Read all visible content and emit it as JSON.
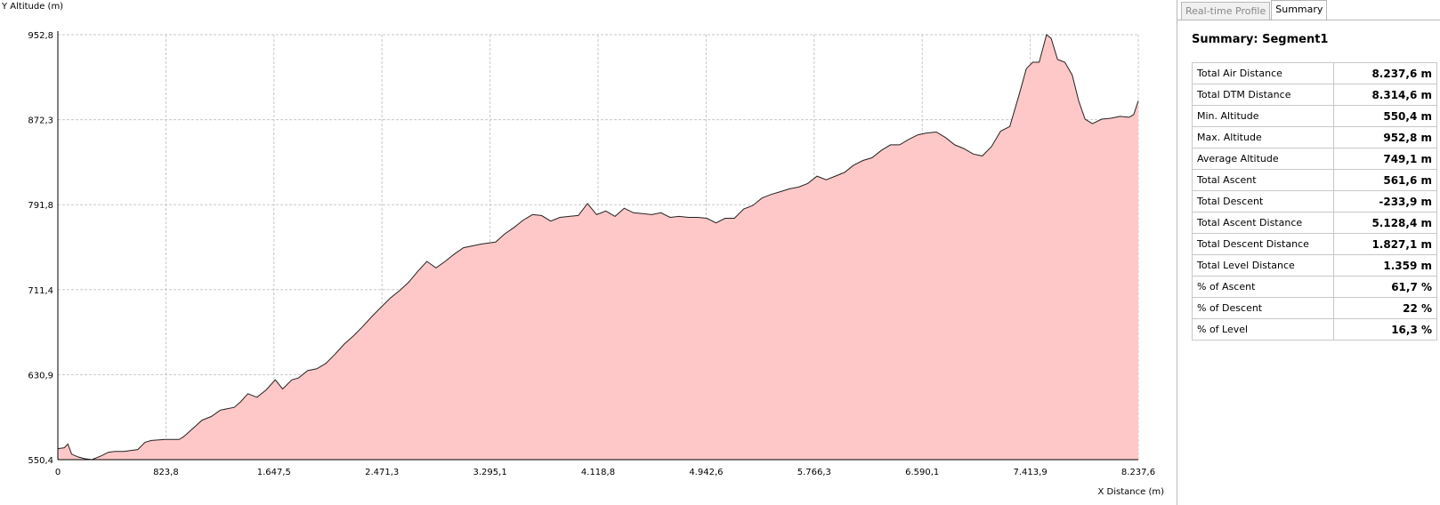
{
  "chart_data": {
    "type": "area",
    "ylabel": "Y Altitude (m)",
    "xlabel": "X Distance (m)",
    "color": "#ffc8c8",
    "line_color": "#222222",
    "grid": true,
    "xlim": [
      0,
      8237.6
    ],
    "ylim": [
      550.4,
      952.8
    ],
    "xticks": [
      0,
      {
        "value": 823.8,
        "label": "823,8"
      },
      {
        "value": 1647.5,
        "label": "1.647,5"
      },
      {
        "value": 2471.3,
        "label": "2.471,3"
      },
      {
        "value": 3295.1,
        "label": "3.295,1"
      },
      {
        "value": 4118.8,
        "label": "4.118,8"
      },
      {
        "value": 4942.6,
        "label": "4.942,6"
      },
      {
        "value": 5766.3,
        "label": "5.766,3"
      },
      {
        "value": 6590.1,
        "label": "6.590,1"
      },
      {
        "value": 7413.9,
        "label": "7.413,9"
      },
      {
        "value": 8237.6,
        "label": "8.237,6"
      }
    ],
    "yticks": [
      {
        "value": 550.4,
        "label": "550,4"
      },
      {
        "value": 630.9,
        "label": "630,9"
      },
      {
        "value": 711.4,
        "label": "711,4"
      },
      {
        "value": 791.8,
        "label": "791,8"
      },
      {
        "value": 872.3,
        "label": "872,3"
      },
      {
        "value": 952.8,
        "label": "952,8"
      }
    ],
    "x": [
      0,
      49,
      77,
      105,
      154,
      203,
      259,
      329,
      385,
      434,
      504,
      609,
      665,
      714,
      819,
      924,
      959,
      1029,
      1099,
      1169,
      1239,
      1344,
      1393,
      1449,
      1518,
      1588,
      1658,
      1714,
      1784,
      1834,
      1904,
      1974,
      2044,
      2114,
      2184,
      2254,
      2324,
      2394,
      2464,
      2534,
      2603,
      2673,
      2743,
      2813,
      2883,
      2953,
      3023,
      3093,
      3163,
      3233,
      3338,
      3408,
      3478,
      3548,
      3618,
      3688,
      3758,
      3828,
      3898,
      3968,
      4038,
      4108,
      4178,
      4248,
      4318,
      4388,
      4458,
      4528,
      4598,
      4668,
      4738,
      4808,
      4878,
      4948,
      5018,
      5088,
      5158,
      5228,
      5298,
      5368,
      5438,
      5508,
      5578,
      5648,
      5718,
      5788,
      5858,
      5928,
      5998,
      6068,
      6138,
      6208,
      6278,
      6348,
      6418,
      6488,
      6558,
      6628,
      6698,
      6768,
      6838,
      6908,
      6978,
      7048,
      7118,
      7188,
      7258,
      7328,
      7384,
      7433,
      7482,
      7538,
      7573,
      7622,
      7678,
      7734,
      7783,
      7832,
      7888,
      7958,
      8028,
      8098,
      8168,
      8203,
      8237.6
    ],
    "values": [
      560.8,
      561.7,
      565.2,
      555.6,
      553.0,
      551.3,
      550.4,
      553.9,
      557.4,
      558.2,
      558.2,
      560.0,
      566.9,
      568.6,
      569.5,
      569.5,
      572.1,
      579.9,
      587.8,
      591.2,
      597.3,
      599.9,
      605.1,
      612.9,
      609.5,
      616.4,
      626.0,
      617.3,
      626.0,
      627.7,
      634.7,
      636.4,
      641.6,
      650.3,
      659.9,
      667.7,
      676.4,
      685.9,
      694.7,
      703.3,
      710.3,
      718.1,
      728.5,
      738.1,
      732.0,
      738.1,
      745.1,
      751.1,
      752.9,
      754.6,
      756.4,
      764.2,
      770.3,
      777.2,
      782.4,
      781.6,
      776.3,
      779.8,
      780.7,
      781.6,
      792.9,
      782.4,
      785.9,
      780.7,
      788.5,
      784.2,
      783.3,
      782.4,
      784.2,
      779.8,
      780.7,
      779.8,
      779.8,
      779.0,
      774.6,
      779.0,
      779.0,
      787.6,
      791.1,
      798.1,
      801.5,
      804.1,
      806.8,
      808.5,
      812.0,
      818.9,
      815.4,
      818.9,
      822.4,
      829.3,
      833.7,
      836.3,
      843.2,
      848.5,
      848.5,
      853.7,
      858.0,
      859.8,
      860.6,
      855.4,
      848.5,
      845.0,
      839.8,
      838.0,
      846.7,
      861.5,
      865.8,
      895.4,
      920.6,
      926.7,
      926.7,
      952.8,
      949.3,
      929.3,
      926.7,
      914.5,
      890.2,
      872.8,
      868.5,
      872.8,
      873.7,
      875.4,
      874.6,
      877.2,
      890.2
    ]
  },
  "panel": {
    "tabs": [
      "Real-time Profile",
      "Summary"
    ],
    "active_tab": 1,
    "title": "Summary: Segment1",
    "rows": [
      [
        "Total Air Distance",
        "8.237,6 m"
      ],
      [
        "Total DTM Distance",
        "8.314,6 m"
      ],
      [
        "Min. Altitude",
        "550,4 m"
      ],
      [
        "Max. Altitude",
        "952,8 m"
      ],
      [
        "Average Altitude",
        "749,1 m"
      ],
      [
        "Total Ascent",
        "561,6 m"
      ],
      [
        "Total Descent",
        "-233,9 m"
      ],
      [
        "Total Ascent Distance",
        "5.128,4 m"
      ],
      [
        "Total Descent Distance",
        "1.827,1 m"
      ],
      [
        "Total Level Distance",
        "1.359 m"
      ],
      [
        "% of Ascent",
        "61,7 %"
      ],
      [
        "% of Descent",
        "22 %"
      ],
      [
        "% of Level",
        "16,3 %"
      ]
    ]
  }
}
